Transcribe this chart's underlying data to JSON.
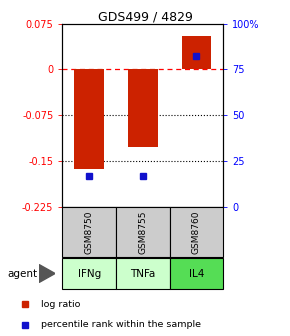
{
  "title": "GDS499 / 4829",
  "samples": [
    "GSM8750",
    "GSM8755",
    "GSM8760"
  ],
  "agents": [
    "IFNg",
    "TNFa",
    "IL4"
  ],
  "log_ratios": [
    -0.163,
    -0.128,
    0.055
  ],
  "percentile_ranks": [
    17.0,
    17.0,
    82.0
  ],
  "ylim_left": [
    -0.225,
    0.075
  ],
  "ylim_right": [
    0,
    100
  ],
  "yticks_left": [
    0.075,
    0,
    -0.075,
    -0.15,
    -0.225
  ],
  "yticks_right": [
    100,
    75,
    50,
    25,
    0
  ],
  "bar_color": "#cc2200",
  "percentile_color": "#1111cc",
  "agent_colors": [
    "#ccffcc",
    "#ccffcc",
    "#55dd55"
  ],
  "sample_bg": "#cccccc",
  "legend_red": "log ratio",
  "legend_blue": "percentile rank within the sample",
  "bar_width": 0.55,
  "percentile_marker_size": 4,
  "title_fontsize": 9,
  "tick_fontsize": 7,
  "label_fontsize": 7.5
}
